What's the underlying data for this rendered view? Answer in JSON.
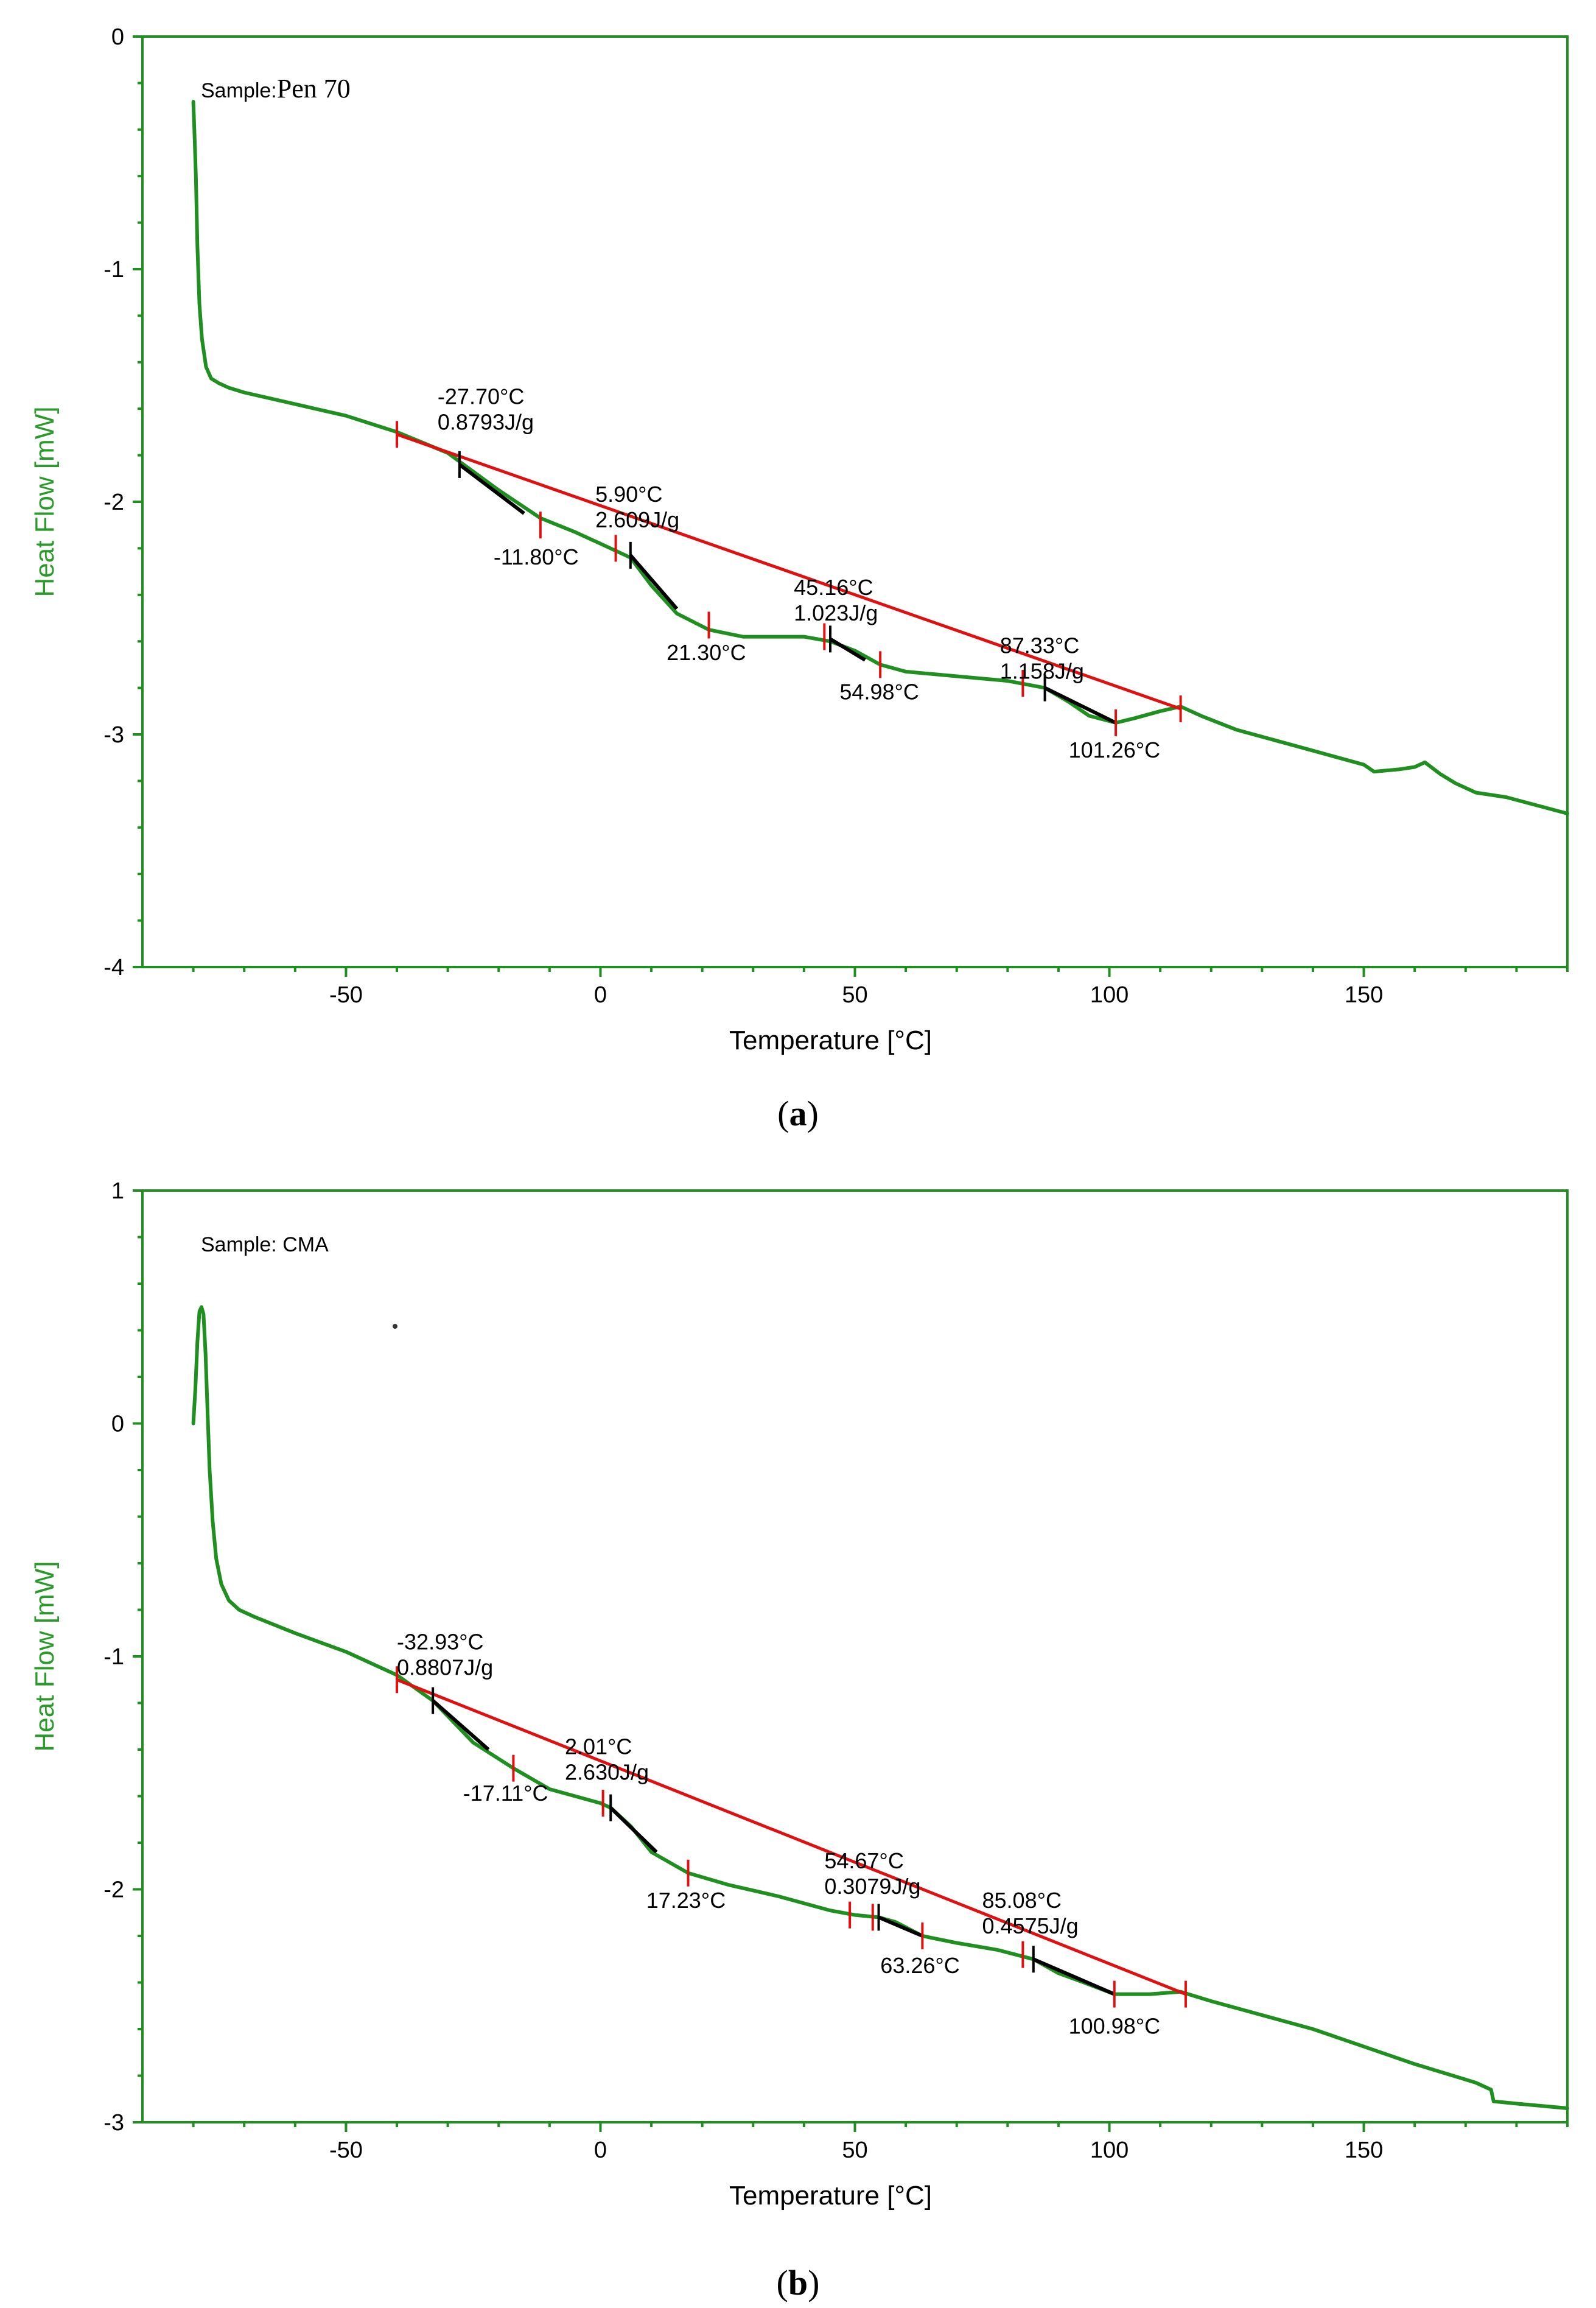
{
  "chart_data": [
    {
      "type": "line",
      "panel_label": "a",
      "sample_prefix": "Sample:",
      "sample_name": "Pen 70",
      "xlabel": "Temperature",
      "xunit": "[°C]",
      "ylabel": "Heat Flow",
      "yunit": "[mW]",
      "xlim": [
        -90,
        190
      ],
      "ylim": [
        -4,
        0
      ],
      "xticks": [
        -50,
        0,
        50,
        100,
        150
      ],
      "xtick_labels": [
        "-50",
        "0",
        "50",
        "100",
        "150"
      ],
      "yticks": [
        0,
        -1,
        -2,
        -3,
        -4
      ],
      "ytick_labels": [
        "0",
        "-1",
        "-2",
        "-3",
        "-4"
      ],
      "series": [
        {
          "name": "heat-flow",
          "color": "#1f8f1f",
          "x": [
            -80,
            -79.8,
            -79.5,
            -79.2,
            -78.8,
            -78.3,
            -77.5,
            -76.5,
            -75,
            -73,
            -70,
            -60,
            -50,
            -40,
            -30,
            -20,
            -11.8,
            -5,
            0,
            5.9,
            10,
            15,
            21.3,
            28,
            35,
            40,
            45.16,
            50,
            54.98,
            60,
            70,
            80,
            87.33,
            92,
            96,
            101.26,
            105,
            110,
            114,
            118,
            125,
            140,
            150,
            152,
            157,
            160,
            162,
            165,
            168,
            172,
            178,
            190
          ],
          "y": [
            -0.28,
            -0.4,
            -0.6,
            -0.9,
            -1.15,
            -1.3,
            -1.42,
            -1.47,
            -1.49,
            -1.51,
            -1.53,
            -1.58,
            -1.63,
            -1.7,
            -1.79,
            -1.95,
            -2.07,
            -2.13,
            -2.18,
            -2.24,
            -2.36,
            -2.48,
            -2.55,
            -2.58,
            -2.58,
            -2.58,
            -2.6,
            -2.64,
            -2.7,
            -2.73,
            -2.75,
            -2.77,
            -2.8,
            -2.86,
            -2.92,
            -2.95,
            -2.93,
            -2.9,
            -2.88,
            -2.92,
            -2.98,
            -3.07,
            -3.13,
            -3.16,
            -3.15,
            -3.14,
            -3.12,
            -3.17,
            -3.21,
            -3.25,
            -3.27,
            -3.34
          ]
        }
      ],
      "baselines": [
        {
          "x": [
            -40,
            114
          ],
          "y": [
            -1.71,
            -2.89
          ]
        }
      ],
      "tangents": [
        {
          "x": [
            -27.7,
            -15
          ],
          "y": [
            -1.84,
            -2.05
          ]
        },
        {
          "x": [
            5.9,
            15
          ],
          "y": [
            -2.23,
            -2.46
          ]
        },
        {
          "x": [
            45.16,
            52
          ],
          "y": [
            -2.59,
            -2.68
          ]
        },
        {
          "x": [
            87.33,
            101.26
          ],
          "y": [
            -2.8,
            -2.95
          ]
        }
      ],
      "red_markers": [
        {
          "x": -40,
          "y": -1.71
        },
        {
          "x": -11.8,
          "y": -2.1
        },
        {
          "x": 3,
          "y": -2.2
        },
        {
          "x": 21.3,
          "y": -2.53
        },
        {
          "x": 44,
          "y": -2.58
        },
        {
          "x": 54.98,
          "y": -2.7
        },
        {
          "x": 83,
          "y": -2.78
        },
        {
          "x": 101.26,
          "y": -2.95
        },
        {
          "x": 114,
          "y": -2.89
        }
      ],
      "black_markers": [
        {
          "x": -27.7,
          "y": -1.84
        },
        {
          "x": 5.9,
          "y": -2.23
        },
        {
          "x": 45.16,
          "y": -2.59
        },
        {
          "x": 87.33,
          "y": -2.8
        }
      ],
      "annotations": [
        {
          "temp": "-27.70°C",
          "enthalpy": "0.8793J/g",
          "tx": -32,
          "ty": -1.58
        },
        {
          "temp": "5.90°C",
          "enthalpy": "2.609J/g",
          "tx": -1,
          "ty": -2.0
        },
        {
          "temp": "45.16°C",
          "enthalpy": "1.023J/g",
          "tx": 38,
          "ty": -2.4
        },
        {
          "temp": "87.33°C",
          "enthalpy": "1.158J/g",
          "tx": 78.5,
          "ty": -2.65
        },
        {
          "temp": "-11.80°C",
          "tx": -21,
          "ty": -2.27
        },
        {
          "temp": "21.30°C",
          "tx": 13,
          "ty": -2.68
        },
        {
          "temp": "54.98°C",
          "tx": 47,
          "ty": -2.85
        },
        {
          "temp": "101.26°C",
          "tx": 92,
          "ty": -3.1
        }
      ]
    },
    {
      "type": "line",
      "panel_label": "b",
      "sample_prefix": "Sample:",
      "sample_name": "CMA",
      "xlabel": "Temperature",
      "xunit": "[°C]",
      "ylabel": "Heat Flow",
      "yunit": "[mW]",
      "xlim": [
        -90,
        190
      ],
      "ylim": [
        -3,
        1
      ],
      "xticks": [
        -50,
        0,
        50,
        100,
        150
      ],
      "xtick_labels": [
        "-50",
        "0",
        "50",
        "100",
        "150"
      ],
      "yticks": [
        1,
        0,
        -1,
        -2,
        -3
      ],
      "ytick_labels": [
        "1",
        "0",
        "-1",
        "-2",
        "-3"
      ],
      "series": [
        {
          "name": "heat-flow",
          "color": "#1f8f1f",
          "x": [
            -80,
            -79.6,
            -79.2,
            -78.8,
            -78.4,
            -78,
            -77.6,
            -77.2,
            -76.8,
            -76.2,
            -75.5,
            -74.5,
            -73,
            -71,
            -68,
            -60,
            -50,
            -40,
            -32.93,
            -25,
            -17.11,
            -10,
            -5,
            0,
            2.01,
            6,
            10,
            17.23,
            25,
            35,
            45,
            50,
            54.67,
            58,
            63.26,
            70,
            78,
            85.08,
            90,
            95,
            100.98,
            108,
            114,
            120,
            140,
            160,
            172,
            175,
            175.5,
            180,
            190
          ],
          "y": [
            0.0,
            0.15,
            0.35,
            0.48,
            0.5,
            0.47,
            0.3,
            0.05,
            -0.2,
            -0.42,
            -0.58,
            -0.69,
            -0.76,
            -0.8,
            -0.83,
            -0.9,
            -0.98,
            -1.08,
            -1.19,
            -1.37,
            -1.48,
            -1.57,
            -1.6,
            -1.63,
            -1.65,
            -1.73,
            -1.84,
            -1.93,
            -1.98,
            -2.03,
            -2.09,
            -2.11,
            -2.12,
            -2.14,
            -2.2,
            -2.23,
            -2.26,
            -2.3,
            -2.36,
            -2.4,
            -2.45,
            -2.45,
            -2.44,
            -2.48,
            -2.6,
            -2.75,
            -2.83,
            -2.86,
            -2.91,
            -2.92,
            -2.94
          ]
        }
      ],
      "baselines": [
        {
          "x": [
            -40,
            115
          ],
          "y": [
            -1.1,
            -2.45
          ]
        }
      ],
      "tangents": [
        {
          "x": [
            -32.93,
            -22
          ],
          "y": [
            -1.19,
            -1.4
          ]
        },
        {
          "x": [
            2.01,
            11
          ],
          "y": [
            -1.65,
            -1.84
          ]
        },
        {
          "x": [
            54.67,
            63.26
          ],
          "y": [
            -2.12,
            -2.2
          ]
        },
        {
          "x": [
            85.08,
            100.98
          ],
          "y": [
            -2.3,
            -2.45
          ]
        }
      ],
      "red_markers": [
        {
          "x": -40,
          "y": -1.1
        },
        {
          "x": -17.11,
          "y": -1.48
        },
        {
          "x": 0.5,
          "y": -1.63
        },
        {
          "x": 17.23,
          "y": -1.93
        },
        {
          "x": 49,
          "y": -2.11
        },
        {
          "x": 53.5,
          "y": -2.12
        },
        {
          "x": 63.26,
          "y": -2.2
        },
        {
          "x": 83,
          "y": -2.28
        },
        {
          "x": 100.98,
          "y": -2.45
        },
        {
          "x": 115,
          "y": -2.45
        }
      ],
      "black_markers": [
        {
          "x": -32.93,
          "y": -1.19
        },
        {
          "x": 2.01,
          "y": -1.65
        },
        {
          "x": 54.67,
          "y": -2.12
        },
        {
          "x": 85.08,
          "y": -2.3
        }
      ],
      "annotations": [
        {
          "temp": "-32.93°C",
          "enthalpy": "0.8807J/g",
          "tx": -40,
          "ty": -0.97
        },
        {
          "temp": "2.01°C",
          "enthalpy": "2.630J/g",
          "tx": -7,
          "ty": -1.42
        },
        {
          "temp": "54.67°C",
          "enthalpy": "0.3079J/g",
          "tx": 44,
          "ty": -1.91
        },
        {
          "temp": "85.08°C",
          "enthalpy": "0.4575J/g",
          "tx": 75,
          "ty": -2.08
        },
        {
          "temp": "-17.11°C",
          "tx": -27,
          "ty": -1.62
        },
        {
          "temp": "17.23°C",
          "tx": 9,
          "ty": -2.08
        },
        {
          "temp": "63.26°C",
          "tx": 55,
          "ty": -2.36
        },
        {
          "temp": "100.98°C",
          "tx": 92,
          "ty": -2.62
        }
      ]
    }
  ]
}
